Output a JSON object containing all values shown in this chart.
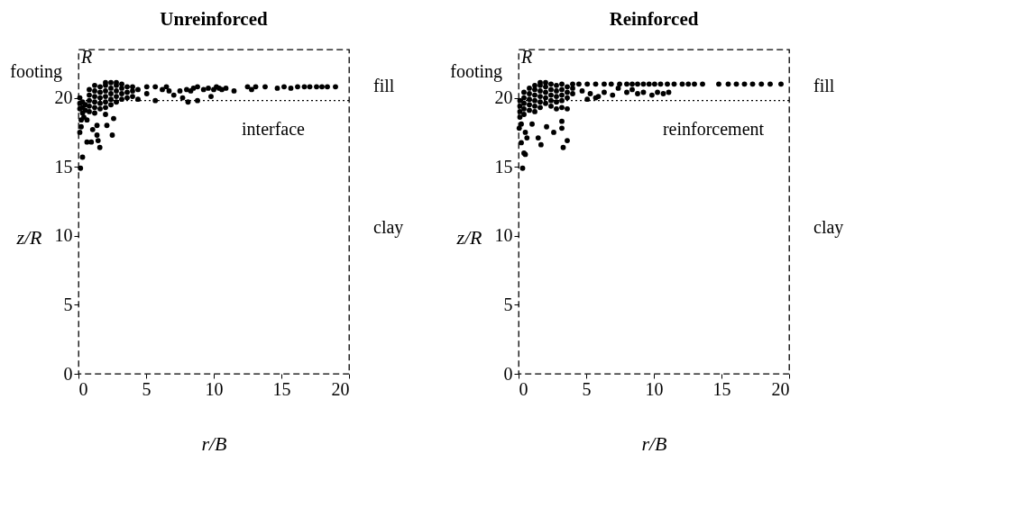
{
  "chart_data": [
    {
      "type": "scatter",
      "title": "Unreinforced",
      "xlabel": "r/B",
      "ylabel": "z/R",
      "xlim": [
        0,
        20
      ],
      "ylim": [
        0,
        23.5
      ],
      "xticks": [
        0,
        5,
        10,
        15,
        20
      ],
      "yticks": [
        0,
        5,
        10,
        15,
        20
      ],
      "grid": false,
      "marker": "circle",
      "series": [
        {
          "color": "#000000",
          "x": [
            0.1,
            0.1,
            0.1,
            0.3,
            0.3,
            0.3,
            0.5,
            0.5,
            0.4,
            0.2,
            0.8,
            0.8,
            0.8,
            0.8,
            0.8,
            1.2,
            1.2,
            1.2,
            1.2,
            1.2,
            1.2,
            1.6,
            1.6,
            1.6,
            1.6,
            1.6,
            2.0,
            2.0,
            2.0,
            2.0,
            2.0,
            2.0,
            2.0,
            2.4,
            2.4,
            2.4,
            2.4,
            2.4,
            2.8,
            2.8,
            2.8,
            2.8,
            2.8,
            3.2,
            3.2,
            3.2,
            3.2,
            3.6,
            3.6,
            3.6,
            4.0,
            4.0,
            4.0,
            4.4,
            4.4,
            0.1,
            0.3,
            0.15,
            0.63,
            0.95,
            1.45,
            1.58,
            1.37,
            1.05,
            0.63,
            0.2,
            2.1,
            2.5,
            2.6,
            1.37,
            5.05,
            5.68,
            5.05,
            5.68,
            6.2,
            6.5,
            6.7,
            7.05,
            7.5,
            7.7,
            8.0,
            8.1,
            8.3,
            8.5,
            8.8,
            8.8,
            9.25,
            9.6,
            9.8,
            10.0,
            10.2,
            10.4,
            10.6,
            10.9,
            11.5,
            12.5,
            12.8,
            13.1,
            13.8,
            14.7,
            15.2,
            15.7,
            16.2,
            16.7,
            17.1,
            17.6,
            18.0,
            18.4,
            19.0
          ],
          "values": [
            19.2,
            19.6,
            20.0,
            18.9,
            19.3,
            19.7,
            19.1,
            19.5,
            18.6,
            18.4,
            19.0,
            19.4,
            19.8,
            20.2,
            20.6,
            18.9,
            19.3,
            19.7,
            20.1,
            20.5,
            20.9,
            19.2,
            19.6,
            20.0,
            20.4,
            20.8,
            18.8,
            19.3,
            19.7,
            20.1,
            20.5,
            20.9,
            21.1,
            19.5,
            19.9,
            20.3,
            20.7,
            21.1,
            19.7,
            20.1,
            20.5,
            20.9,
            21.1,
            19.9,
            20.3,
            20.7,
            21.0,
            20.0,
            20.4,
            20.8,
            20.1,
            20.5,
            20.8,
            19.9,
            20.6,
            17.5,
            15.7,
            14.9,
            16.8,
            16.8,
            16.9,
            16.4,
            17.3,
            17.7,
            18.4,
            17.9,
            18.0,
            17.3,
            18.5,
            18.0,
            20.8,
            20.8,
            20.3,
            19.8,
            20.6,
            20.8,
            20.5,
            20.2,
            20.5,
            20.0,
            20.6,
            19.7,
            20.5,
            20.7,
            20.8,
            19.8,
            20.6,
            20.7,
            20.1,
            20.6,
            20.8,
            20.7,
            20.6,
            20.7,
            20.5,
            20.8,
            20.6,
            20.8,
            20.8,
            20.7,
            20.8,
            20.7,
            20.8,
            20.8,
            20.8,
            20.8,
            20.8,
            20.8,
            20.8
          ]
        }
      ],
      "ref_lines": [
        {
          "axis": "y",
          "value": 19.8,
          "label": "interface",
          "line_style": "dotted"
        }
      ],
      "annotations": [
        "footing",
        "R",
        "fill",
        "clay"
      ]
    },
    {
      "type": "scatter",
      "title": "Reinforced",
      "xlabel": "r/B",
      "ylabel": "z/R",
      "xlim": [
        0,
        20
      ],
      "ylim": [
        0,
        23.5
      ],
      "xticks": [
        0,
        5,
        10,
        15,
        20
      ],
      "yticks": [
        0,
        5,
        10,
        15,
        20
      ],
      "grid": false,
      "marker": "circle",
      "series": [
        {
          "color": "#000000",
          "x": [
            0.1,
            0.1,
            0.1,
            0.1,
            0.4,
            0.4,
            0.4,
            0.4,
            0.4,
            0.8,
            0.8,
            0.8,
            0.8,
            0.8,
            1.2,
            1.2,
            1.2,
            1.2,
            1.2,
            1.2,
            1.6,
            1.6,
            1.6,
            1.6,
            1.6,
            1.6,
            2.0,
            2.0,
            2.0,
            2.0,
            2.0,
            2.4,
            2.4,
            2.4,
            2.4,
            2.4,
            2.8,
            2.8,
            2.8,
            2.8,
            2.8,
            3.2,
            3.2,
            3.2,
            3.2,
            3.2,
            3.6,
            3.6,
            3.6,
            3.6,
            4.0,
            4.0,
            4.0,
            0.05,
            0.2,
            0.5,
            0.62,
            1.0,
            1.45,
            1.66,
            2.07,
            2.6,
            3.2,
            3.2,
            3.3,
            3.6,
            0.4,
            0.5,
            0.3,
            0.2,
            4.46,
            5.08,
            5.7,
            6.33,
            6.85,
            7.47,
            8.0,
            8.4,
            8.8,
            9.23,
            9.65,
            10.06,
            10.5,
            11.0,
            11.5,
            12.1,
            12.55,
            13.0,
            13.6,
            14.8,
            15.5,
            16.1,
            16.7,
            17.3,
            17.95,
            18.6,
            19.4,
            4.7,
            5.3,
            5.9,
            6.33,
            6.95,
            7.37,
            8.0,
            8.4,
            8.8,
            9.23,
            9.86,
            10.27,
            10.7,
            11.1,
            5.08,
            5.7
          ],
          "values": [
            18.6,
            19.0,
            19.4,
            19.8,
            18.8,
            19.2,
            19.6,
            20.0,
            20.4,
            19.1,
            19.5,
            19.9,
            20.3,
            20.7,
            19.0,
            19.4,
            19.8,
            20.2,
            20.6,
            20.9,
            19.3,
            19.7,
            20.1,
            20.5,
            20.9,
            21.1,
            19.6,
            20.0,
            20.4,
            20.8,
            21.1,
            19.4,
            19.8,
            20.2,
            20.6,
            21.0,
            19.2,
            19.7,
            20.1,
            20.5,
            20.9,
            19.3,
            19.8,
            20.2,
            20.6,
            21.0,
            19.2,
            20.0,
            20.4,
            20.8,
            20.3,
            20.7,
            21.0,
            17.8,
            18.1,
            17.5,
            17.1,
            18.1,
            17.1,
            16.6,
            17.9,
            17.5,
            18.3,
            17.8,
            16.4,
            16.9,
            16.0,
            15.9,
            14.9,
            16.75,
            21.0,
            21.0,
            21.0,
            21.0,
            21.0,
            21.0,
            21.0,
            21.0,
            21.0,
            21.0,
            21.0,
            21.0,
            21.0,
            21.0,
            21.0,
            21.0,
            21.0,
            21.0,
            21.0,
            21.0,
            21.0,
            21.0,
            21.0,
            21.0,
            21.0,
            21.0,
            21.0,
            20.5,
            20.3,
            20.1,
            20.4,
            20.2,
            20.7,
            20.4,
            20.6,
            20.3,
            20.4,
            20.2,
            20.4,
            20.3,
            20.4,
            19.9,
            20.0
          ]
        }
      ],
      "ref_lines": [
        {
          "axis": "y",
          "value": 19.8,
          "label": "reinforcement",
          "line_style": "dotted"
        }
      ],
      "annotations": [
        "footing",
        "R",
        "fill",
        "clay"
      ]
    }
  ]
}
